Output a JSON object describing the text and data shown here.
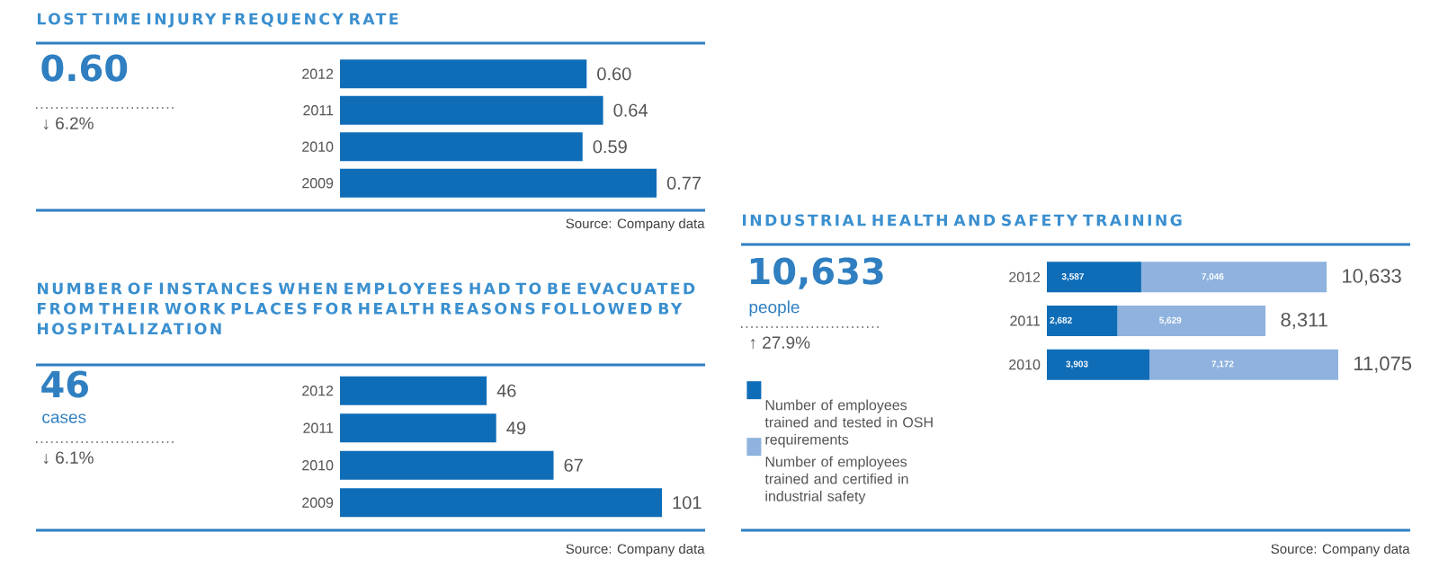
{
  "chart_data": [
    {
      "type": "bar",
      "orientation": "horizontal",
      "title": "LOST TIME INJURY FREQUENCY RATE",
      "categories": [
        "2012",
        "2011",
        "2010",
        "2009"
      ],
      "values": [
        0.6,
        0.64,
        0.59,
        0.77
      ],
      "color": "#0f6db8",
      "value_labels": [
        "0.60",
        "0.64",
        "0.59",
        "0.77"
      ],
      "annotations": [
        "0.60",
        "↓ 6.2%",
        "Source: Company data"
      ]
    },
    {
      "type": "bar",
      "orientation": "horizontal",
      "title": "NUMBER OF INSTANCES WHEN EMPLOYEES HAD TO BE EVACUATED FROM THEIR WORK PLACES FOR HEALTH REASONS FOLLOWED BY HOSPITALIZATION",
      "categories": [
        "2012",
        "2011",
        "2010",
        "2009"
      ],
      "values": [
        46,
        49,
        67,
        101
      ],
      "color": "#0f6db8",
      "data_labels": true,
      "annotations": [
        "46",
        "cases",
        "↓ 6.1%",
        "Source: Company data"
      ]
    },
    {
      "type": "bar",
      "orientation": "horizontal",
      "stacked": true,
      "title": "INDUSTRIAL HEALTH AND SAFETY TRAINING",
      "categories": [
        "2012",
        "2011",
        "2010"
      ],
      "series": [
        {
          "name": "Number of employees trained and tested in OSH requirements",
          "color": "#0f6db8",
          "values": [
            3587,
            2682,
            3903
          ],
          "value_labels": [
            "3,587",
            "2,682",
            "3,903"
          ]
        },
        {
          "name": "Number of employees trained and certified in industrial safety",
          "color": "#8fb3de",
          "values": [
            7046,
            5629,
            7172
          ],
          "value_labels": [
            "7,046",
            "5,629",
            "7,172"
          ]
        }
      ],
      "totals": [
        "10,633",
        "8,311",
        "11,075"
      ],
      "legend": "left",
      "annotations": [
        "10,633",
        "people",
        "↑ 27.9%",
        "Source: Company data"
      ]
    }
  ]
}
